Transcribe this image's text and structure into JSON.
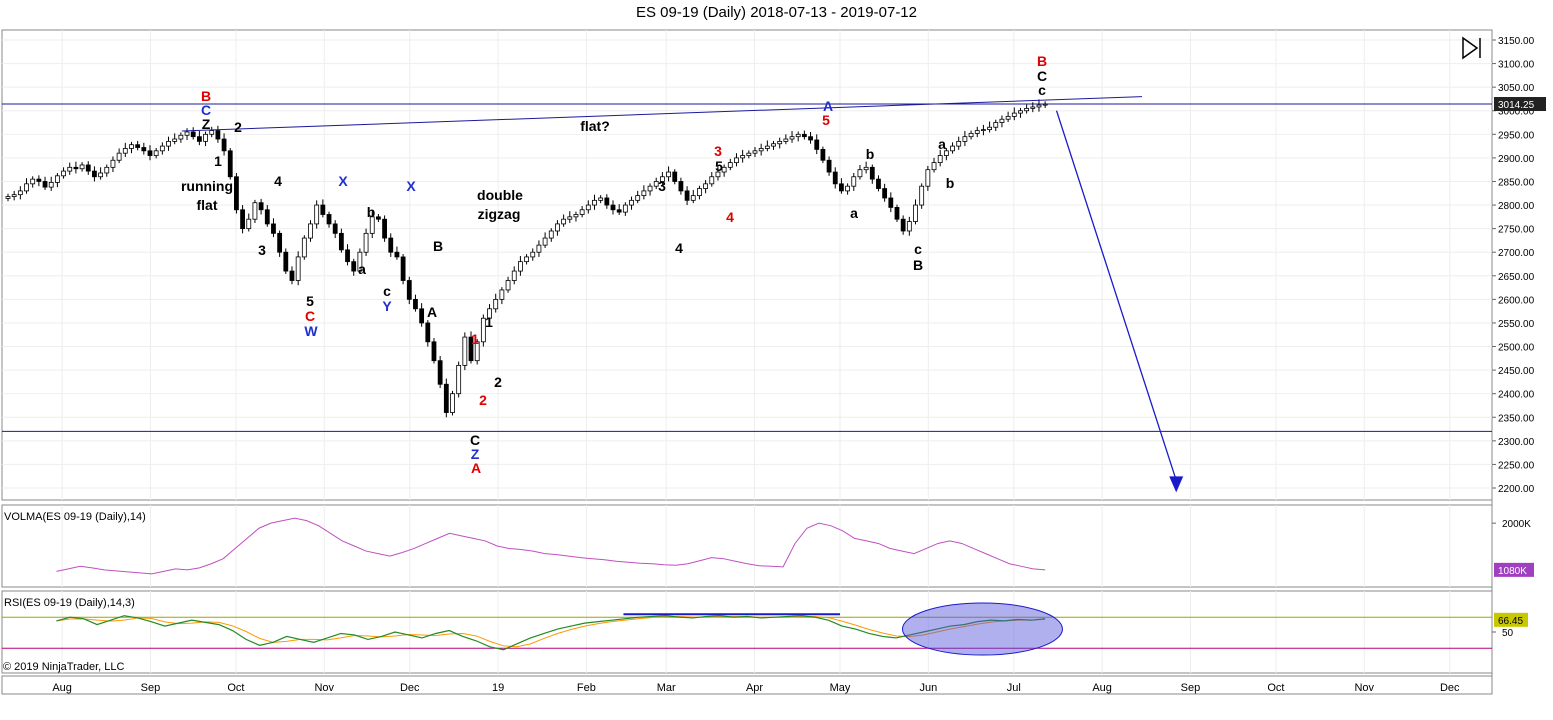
{
  "window": {
    "title": "ES 09-19 (Daily)  2018-07-13 - 2019-07-12"
  },
  "colors": {
    "up": "#ffffff",
    "down": "#000000",
    "annotation": "#0000cc",
    "red_label": "#e00000",
    "volma_line": "#c050c0",
    "rsi_line": "#228b22",
    "rsi_avg": "#ff9900",
    "rsi_band": "#9aa800",
    "rsi_low_band": "#b0007a",
    "price_tag": "#222222",
    "volma_tag": "#a040c0",
    "rsi_tag": "#c8c800"
  },
  "copyright": "© 2019 NinjaTrader, LLC",
  "chart_data": [
    {
      "type": "candlestick",
      "title": "ES 09-19 (Daily)  2018-07-13 - 2019-07-12",
      "ylim": [
        2180,
        3160
      ],
      "y_ticks": [
        "3150.00",
        "3100.00",
        "3050.00",
        "3000.00",
        "2950.00",
        "2900.00",
        "2850.00",
        "2800.00",
        "2750.00",
        "2700.00",
        "2650.00",
        "2600.00",
        "2550.00",
        "2500.00",
        "2450.00",
        "2400.00",
        "2350.00",
        "2300.00",
        "2250.00",
        "2200.00"
      ],
      "x_ticks": [
        "Aug",
        "Sep",
        "Oct",
        "Nov",
        "Dec",
        "19",
        "Feb",
        "Mar",
        "Apr",
        "May",
        "Jun",
        "Jul",
        "Aug",
        "Sep",
        "Oct",
        "Nov",
        "Dec"
      ],
      "last_price": "3014.25",
      "closes": [
        2818,
        2822,
        2830,
        2845,
        2855,
        2850,
        2838,
        2848,
        2862,
        2872,
        2880,
        2877,
        2885,
        2872,
        2860,
        2868,
        2880,
        2895,
        2910,
        2920,
        2928,
        2922,
        2915,
        2905,
        2915,
        2925,
        2935,
        2940,
        2948,
        2955,
        2945,
        2935,
        2950,
        2958,
        2940,
        2915,
        2860,
        2790,
        2750,
        2770,
        2805,
        2790,
        2760,
        2740,
        2700,
        2660,
        2640,
        2690,
        2730,
        2760,
        2800,
        2780,
        2760,
        2740,
        2705,
        2680,
        2660,
        2700,
        2740,
        2775,
        2770,
        2730,
        2700,
        2690,
        2640,
        2600,
        2580,
        2550,
        2510,
        2470,
        2420,
        2360,
        2400,
        2460,
        2520,
        2470,
        2510,
        2560,
        2580,
        2600,
        2620,
        2640,
        2660,
        2680,
        2690,
        2700,
        2715,
        2730,
        2745,
        2760,
        2770,
        2775,
        2780,
        2790,
        2800,
        2810,
        2815,
        2800,
        2790,
        2785,
        2800,
        2810,
        2820,
        2830,
        2840,
        2850,
        2860,
        2870,
        2850,
        2830,
        2810,
        2820,
        2835,
        2845,
        2860,
        2870,
        2880,
        2890,
        2900,
        2905,
        2910,
        2915,
        2920,
        2925,
        2930,
        2935,
        2940,
        2945,
        2950,
        2945,
        2938,
        2918,
        2895,
        2870,
        2845,
        2830,
        2840,
        2860,
        2875,
        2880,
        2855,
        2835,
        2815,
        2795,
        2770,
        2745,
        2765,
        2800,
        2840,
        2875,
        2890,
        2905,
        2915,
        2925,
        2935,
        2945,
        2952,
        2958,
        2960,
        2965,
        2975,
        2982,
        2988,
        2995,
        3000,
        3005,
        3008,
        3012,
        3014
      ],
      "price_levels": [
        3014.25,
        2320
      ],
      "trendline": {
        "from": {
          "x": "2018-09-12",
          "y": 2957
        },
        "to": {
          "x": "2019-08-15",
          "y": 3030
        }
      },
      "projection_arrow": {
        "from": {
          "x": "2019-07-16",
          "y": 3000
        },
        "to": {
          "x": "2019-08-27",
          "y": 2195
        }
      },
      "annotations": [
        {
          "text": "flat?",
          "color": "black"
        },
        {
          "text": "running",
          "color": "black"
        },
        {
          "text": "flat",
          "color": "black"
        },
        {
          "text": "double",
          "color": "black"
        },
        {
          "text": "zigzag",
          "color": "black"
        }
      ],
      "wave_labels": [
        {
          "text": "B",
          "color": "red"
        },
        {
          "text": "C",
          "color": "blue"
        },
        {
          "text": "Z",
          "color": "black"
        },
        {
          "text": "1",
          "color": "black"
        },
        {
          "text": "2",
          "color": "black"
        },
        {
          "text": "3",
          "color": "black"
        },
        {
          "text": "4",
          "color": "black"
        },
        {
          "text": "5",
          "color": "black"
        },
        {
          "text": "C",
          "color": "red"
        },
        {
          "text": "W",
          "color": "blue"
        },
        {
          "text": "X",
          "color": "blue"
        },
        {
          "text": "a",
          "color": "black"
        },
        {
          "text": "b",
          "color": "black"
        },
        {
          "text": "c",
          "color": "black"
        },
        {
          "text": "Y",
          "color": "blue"
        },
        {
          "text": "X",
          "color": "blue"
        },
        {
          "text": "A",
          "color": "black"
        },
        {
          "text": "B",
          "color": "black"
        },
        {
          "text": "1",
          "color": "red"
        },
        {
          "text": "2",
          "color": "red"
        },
        {
          "text": "1",
          "color": "black"
        },
        {
          "text": "2",
          "color": "black"
        },
        {
          "text": "C",
          "color": "black"
        },
        {
          "text": "Z",
          "color": "blue"
        },
        {
          "text": "A",
          "color": "red"
        },
        {
          "text": "3",
          "color": "black"
        },
        {
          "text": "4",
          "color": "black"
        },
        {
          "text": "3",
          "color": "red"
        },
        {
          "text": "5",
          "color": "black"
        },
        {
          "text": "4",
          "color": "red"
        },
        {
          "text": "A",
          "color": "blue"
        },
        {
          "text": "5",
          "color": "red"
        },
        {
          "text": "b",
          "color": "black"
        },
        {
          "text": "a",
          "color": "black"
        },
        {
          "text": "c",
          "color": "black"
        },
        {
          "text": "B",
          "color": "black"
        },
        {
          "text": "a",
          "color": "black"
        },
        {
          "text": "b",
          "color": "black"
        },
        {
          "text": "B",
          "color": "red"
        },
        {
          "text": "C",
          "color": "black"
        },
        {
          "text": "c",
          "color": "black"
        }
      ]
    },
    {
      "type": "line",
      "title": "VOLMA(ES 09-19 (Daily),14)",
      "y_ticks": [
        "2000K"
      ],
      "last_value": "1080K",
      "values": [
        1050,
        1100,
        1150,
        1120,
        1080,
        1060,
        1040,
        1020,
        1000,
        1050,
        1100,
        1080,
        1120,
        1200,
        1300,
        1500,
        1700,
        1900,
        2000,
        2050,
        2100,
        2050,
        1950,
        1800,
        1650,
        1550,
        1450,
        1400,
        1350,
        1420,
        1500,
        1600,
        1700,
        1800,
        1750,
        1700,
        1650,
        1550,
        1500,
        1480,
        1450,
        1400,
        1380,
        1350,
        1320,
        1300,
        1280,
        1250,
        1230,
        1210,
        1200,
        1180,
        1170,
        1200,
        1260,
        1320,
        1300,
        1250,
        1200,
        1160,
        1150,
        1140,
        1600,
        1900,
        2000,
        1950,
        1850,
        1700,
        1650,
        1600,
        1500,
        1450,
        1400,
        1500,
        1600,
        1650,
        1600,
        1500,
        1400,
        1300,
        1200,
        1150,
        1100,
        1080
      ]
    },
    {
      "type": "line",
      "title": "RSI(ES 09-19 (Daily),14,3)",
      "y_ticks": [
        "50"
      ],
      "last_value": "66.45",
      "levels": [
        70,
        30
      ],
      "values": [
        65,
        70,
        68,
        60,
        66,
        72,
        69,
        64,
        58,
        62,
        66,
        63,
        60,
        52,
        40,
        32,
        36,
        44,
        40,
        36,
        42,
        48,
        46,
        40,
        44,
        50,
        46,
        42,
        48,
        52,
        44,
        38,
        30,
        26,
        34,
        42,
        48,
        54,
        58,
        62,
        64,
        66,
        68,
        70,
        71,
        72,
        70,
        69,
        71,
        72,
        70,
        71,
        69,
        70,
        71,
        72,
        70,
        66,
        58,
        54,
        48,
        44,
        42,
        46,
        50,
        54,
        58,
        60,
        64,
        66,
        65,
        67,
        66,
        68
      ]
    }
  ]
}
